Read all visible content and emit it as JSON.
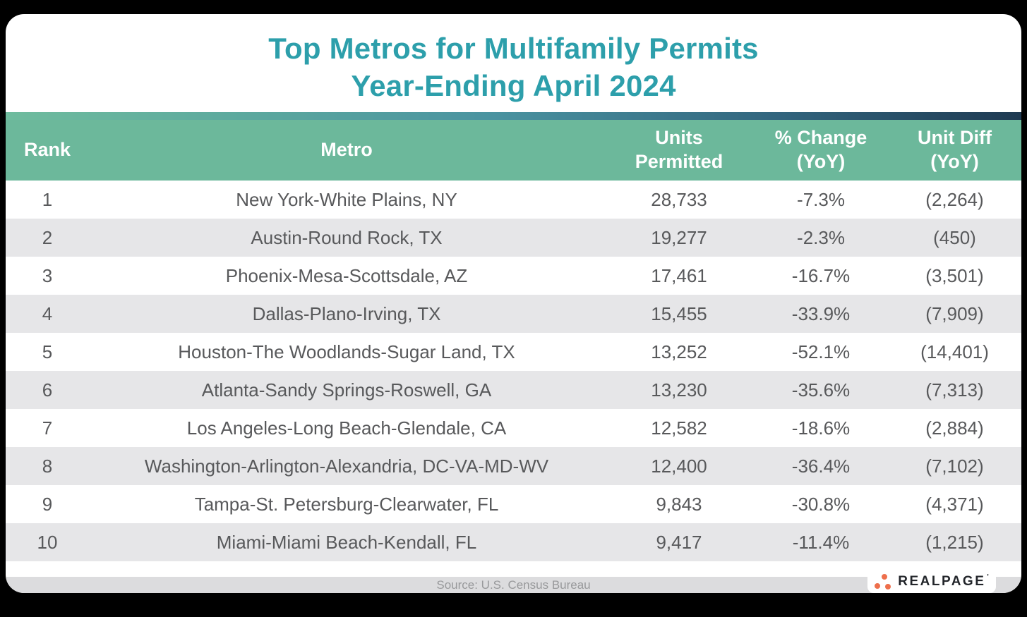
{
  "title": {
    "line1": "Top Metros for Multifamily Permits",
    "line2": "Year-Ending April 2024"
  },
  "table": {
    "columns": [
      {
        "label": "Rank"
      },
      {
        "label": "Metro"
      },
      {
        "label": "Units\nPermitted"
      },
      {
        "label": "% Change\n(YoY)"
      },
      {
        "label": "Unit Diff\n(YoY)"
      }
    ],
    "rows": [
      {
        "rank": "1",
        "metro": "New York-White Plains, NY",
        "units": "28,733",
        "change": "-7.3%",
        "diff": "(2,264)"
      },
      {
        "rank": "2",
        "metro": "Austin-Round Rock, TX",
        "units": "19,277",
        "change": "-2.3%",
        "diff": "(450)"
      },
      {
        "rank": "3",
        "metro": "Phoenix-Mesa-Scottsdale, AZ",
        "units": "17,461",
        "change": "-16.7%",
        "diff": "(3,501)"
      },
      {
        "rank": "4",
        "metro": "Dallas-Plano-Irving, TX",
        "units": "15,455",
        "change": "-33.9%",
        "diff": "(7,909)"
      },
      {
        "rank": "5",
        "metro": "Houston-The Woodlands-Sugar Land, TX",
        "units": "13,252",
        "change": "-52.1%",
        "diff": "(14,401)"
      },
      {
        "rank": "6",
        "metro": "Atlanta-Sandy Springs-Roswell, GA",
        "units": "13,230",
        "change": "-35.6%",
        "diff": "(7,313)"
      },
      {
        "rank": "7",
        "metro": "Los Angeles-Long Beach-Glendale, CA",
        "units": "12,582",
        "change": "-18.6%",
        "diff": "(2,884)"
      },
      {
        "rank": "8",
        "metro": "Washington-Arlington-Alexandria, DC-VA-MD-WV",
        "units": "12,400",
        "change": "-36.4%",
        "diff": "(7,102)"
      },
      {
        "rank": "9",
        "metro": "Tampa-St. Petersburg-Clearwater, FL",
        "units": "9,843",
        "change": "-30.8%",
        "diff": "(4,371)"
      },
      {
        "rank": "10",
        "metro": "Miami-Miami Beach-Kendall, FL",
        "units": "9,417",
        "change": "-11.4%",
        "diff": "(1,215)"
      }
    ]
  },
  "footer": {
    "source": "Source: U.S. Census Bureau"
  },
  "logo": {
    "text": "REALPAGE",
    "tick": "'"
  },
  "colors": {
    "title_teal": "#2d9fab",
    "header_green": "#6cb89b",
    "gradient_bar_left": "#6fbc9e",
    "gradient_bar_right": "#1f3a52",
    "row_stripe": "#e6e6e8",
    "row_text": "#58595b",
    "footer_strip": "#dcdcde",
    "footer_text": "#98999b",
    "logo_orange": "#ee6f4c",
    "logo_dark": "#23262b",
    "page_background": "#000000"
  },
  "chart_data": {
    "type": "table",
    "title": "Top Metros for Multifamily Permits Year-Ending April 2024",
    "columns": [
      "Rank",
      "Metro",
      "Units Permitted",
      "% Change (YoY)",
      "Unit Diff (YoY)"
    ],
    "rows": [
      [
        1,
        "New York-White Plains, NY",
        28733,
        -7.3,
        -2264
      ],
      [
        2,
        "Austin-Round Rock, TX",
        19277,
        -2.3,
        -450
      ],
      [
        3,
        "Phoenix-Mesa-Scottsdale, AZ",
        17461,
        -16.7,
        -3501
      ],
      [
        4,
        "Dallas-Plano-Irving, TX",
        15455,
        -33.9,
        -7909
      ],
      [
        5,
        "Houston-The Woodlands-Sugar Land, TX",
        13252,
        -52.1,
        -14401
      ],
      [
        6,
        "Atlanta-Sandy Springs-Roswell, GA",
        13230,
        -35.6,
        -7313
      ],
      [
        7,
        "Los Angeles-Long Beach-Glendale, CA",
        12582,
        -18.6,
        -2884
      ],
      [
        8,
        "Washington-Arlington-Alexandria, DC-VA-MD-WV",
        12400,
        -36.4,
        -7102
      ],
      [
        9,
        "Tampa-St. Petersburg-Clearwater, FL",
        9843,
        -30.8,
        -4371
      ],
      [
        10,
        "Miami-Miami Beach-Kendall, FL",
        9417,
        -11.4,
        -1215
      ]
    ],
    "notes": "Negative Unit Diff values displayed in parentheses; source U.S. Census Bureau"
  }
}
